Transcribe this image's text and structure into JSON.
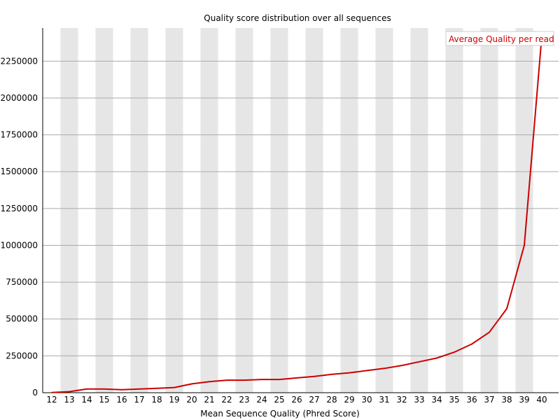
{
  "colors": {
    "series": "#cc0000",
    "band": "#e6e6e6",
    "gridline": "#aaaaaa",
    "axis": "#000000",
    "legend_border": "#cccccc"
  },
  "chart_data": {
    "type": "line",
    "title": "Quality score distribution over all sequences",
    "xlabel": "Mean Sequence Quality (Phred Score)",
    "ylabel": "",
    "x": [
      12,
      13,
      14,
      15,
      16,
      17,
      18,
      19,
      20,
      21,
      22,
      23,
      24,
      25,
      26,
      27,
      28,
      29,
      30,
      31,
      32,
      33,
      34,
      35,
      36,
      37,
      38,
      39,
      40
    ],
    "x_tick_labels": [
      "12",
      "13",
      "14",
      "15",
      "16",
      "17",
      "18",
      "19",
      "20",
      "21",
      "22",
      "23",
      "24",
      "25",
      "26",
      "27",
      "28",
      "29",
      "30",
      "31",
      "32",
      "33",
      "34",
      "35",
      "36",
      "37",
      "38",
      "39",
      "40"
    ],
    "y_ticks": [
      0,
      250000,
      500000,
      750000,
      1000000,
      1250000,
      1500000,
      1750000,
      2000000,
      2250000
    ],
    "y_tick_labels": [
      "0",
      "250000",
      "500000",
      "750000",
      "1000000",
      "1250000",
      "1500000",
      "1750000",
      "2000000",
      "2250000"
    ],
    "ylim": [
      0,
      2475000
    ],
    "grid": true,
    "alternating_bands": true,
    "legend_position": "top-right",
    "series": [
      {
        "name": "Average Quality per read",
        "values": [
          1500,
          7000,
          25000,
          25000,
          20000,
          25000,
          30000,
          35000,
          60000,
          75000,
          85000,
          85000,
          90000,
          90000,
          100000,
          110000,
          125000,
          135000,
          150000,
          165000,
          185000,
          210000,
          235000,
          275000,
          330000,
          410000,
          570000,
          1000000,
          2420000
        ]
      }
    ]
  }
}
